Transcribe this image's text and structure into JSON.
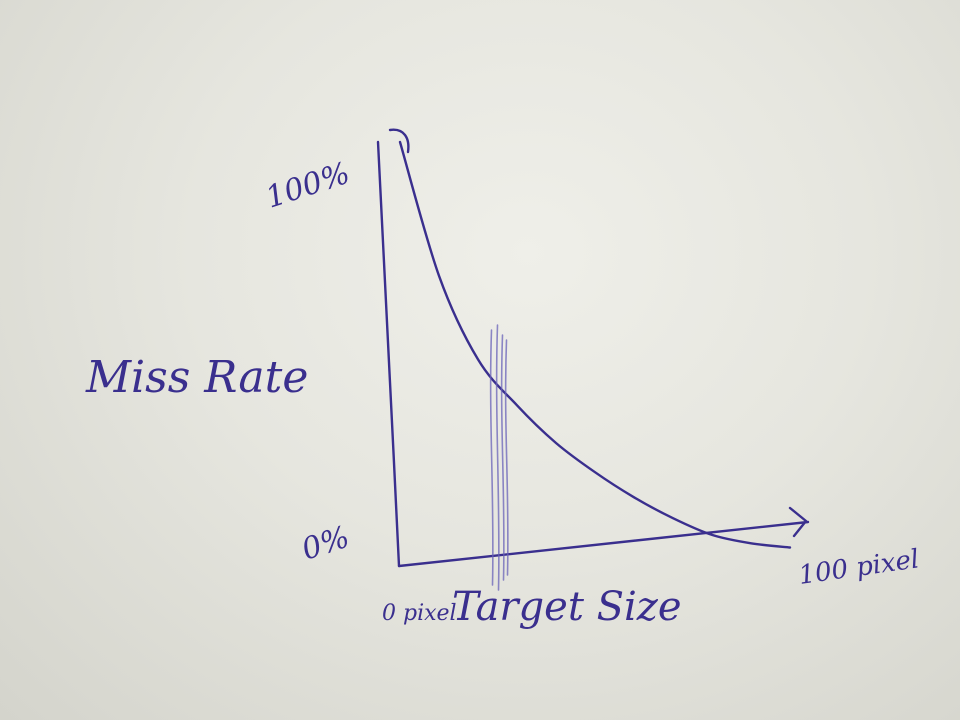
{
  "chart_data": {
    "type": "line",
    "ylabel": "Miss Rate",
    "xlabel": "Target Size",
    "y_ticks": [
      "100%",
      "0%"
    ],
    "x_ticks": [
      "0 pixel",
      "100 pixel"
    ],
    "xlim": [
      0,
      100
    ],
    "ylim": [
      0,
      100
    ],
    "series": [
      {
        "x": [
          0,
          10,
          20,
          30,
          40,
          50,
          60,
          70,
          80,
          90,
          100
        ],
        "y": [
          100,
          68,
          48,
          37,
          28,
          21,
          15,
          10,
          6,
          4,
          3
        ]
      }
    ],
    "marker_x": 25,
    "grid": false,
    "legend": "none"
  }
}
